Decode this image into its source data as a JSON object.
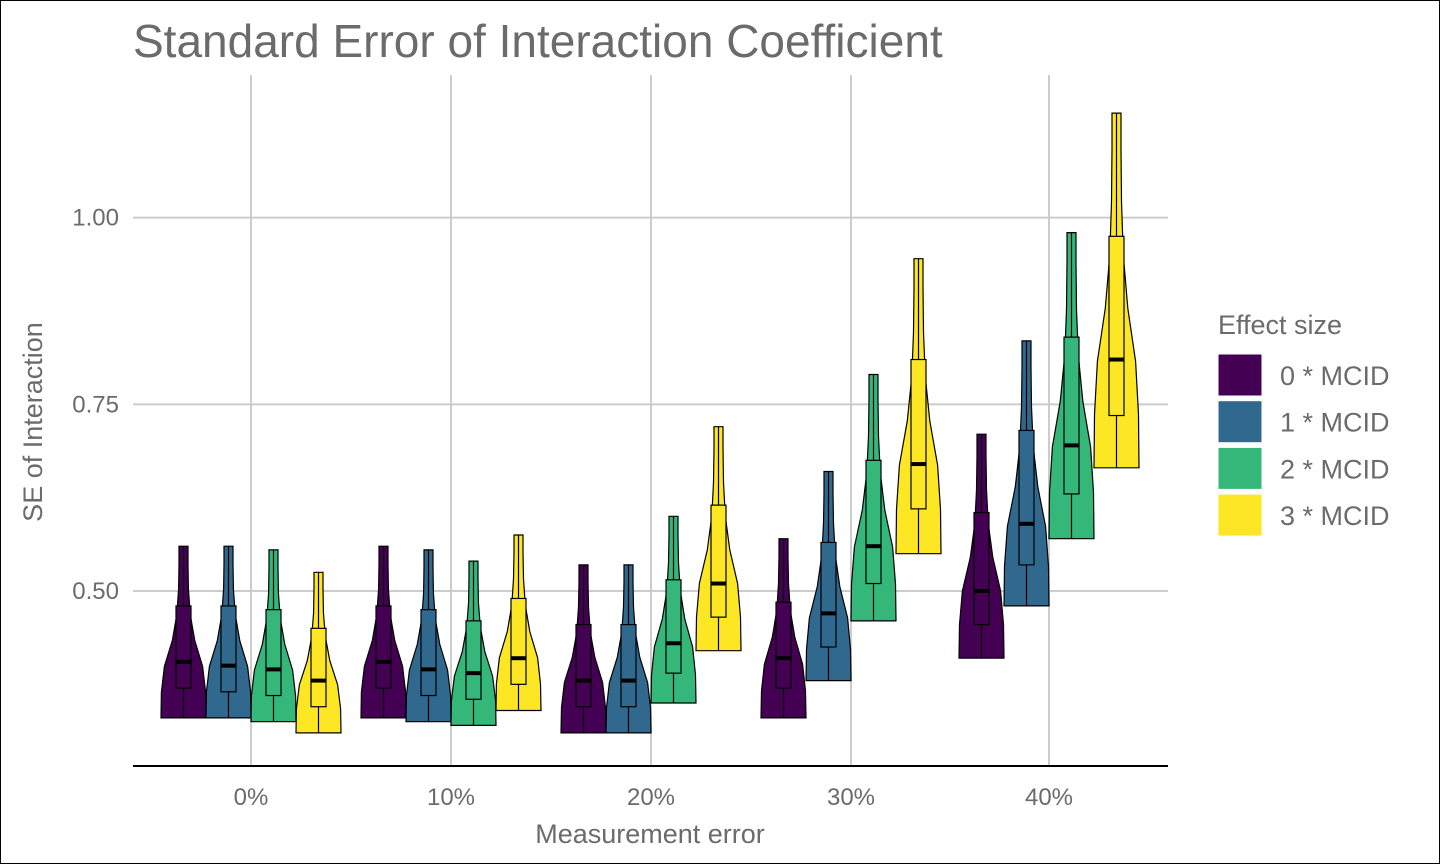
{
  "chart_data": {
    "type": "violin",
    "title": "Standard Error of Interaction Coefficient",
    "xlabel": "Measurement error",
    "ylabel": "SE of Interaction",
    "categories": [
      "0%",
      "10%",
      "20%",
      "30%",
      "40%"
    ],
    "yticks": [
      "0.50",
      "0.75",
      "1.00"
    ],
    "ylim": [
      0.27,
      1.17
    ],
    "grid": true,
    "legend": {
      "title": "Effect size",
      "position": "right"
    },
    "series": [
      {
        "name": "0 * MCID",
        "color": "#440154",
        "violins": [
          {
            "min": 0.33,
            "q1": 0.37,
            "median": 0.405,
            "q3": 0.48,
            "max": 0.56
          },
          {
            "min": 0.33,
            "q1": 0.37,
            "median": 0.405,
            "q3": 0.48,
            "max": 0.56
          },
          {
            "min": 0.31,
            "q1": 0.345,
            "median": 0.38,
            "q3": 0.455,
            "max": 0.535
          },
          {
            "min": 0.33,
            "q1": 0.37,
            "median": 0.41,
            "q3": 0.485,
            "max": 0.57
          },
          {
            "min": 0.41,
            "q1": 0.455,
            "median": 0.5,
            "q3": 0.605,
            "max": 0.71
          }
        ]
      },
      {
        "name": "1 * MCID",
        "color": "#31688E",
        "violins": [
          {
            "min": 0.33,
            "q1": 0.365,
            "median": 0.4,
            "q3": 0.48,
            "max": 0.56
          },
          {
            "min": 0.325,
            "q1": 0.36,
            "median": 0.395,
            "q3": 0.475,
            "max": 0.555
          },
          {
            "min": 0.31,
            "q1": 0.345,
            "median": 0.38,
            "q3": 0.455,
            "max": 0.535
          },
          {
            "min": 0.38,
            "q1": 0.425,
            "median": 0.47,
            "q3": 0.565,
            "max": 0.66
          },
          {
            "min": 0.48,
            "q1": 0.535,
            "median": 0.59,
            "q3": 0.715,
            "max": 0.835
          }
        ]
      },
      {
        "name": "2 * MCID",
        "color": "#35B779",
        "violins": [
          {
            "min": 0.325,
            "q1": 0.36,
            "median": 0.395,
            "q3": 0.475,
            "max": 0.555
          },
          {
            "min": 0.32,
            "q1": 0.355,
            "median": 0.39,
            "q3": 0.46,
            "max": 0.54
          },
          {
            "min": 0.35,
            "q1": 0.39,
            "median": 0.43,
            "q3": 0.515,
            "max": 0.6
          },
          {
            "min": 0.46,
            "q1": 0.51,
            "median": 0.56,
            "q3": 0.675,
            "max": 0.79
          },
          {
            "min": 0.57,
            "q1": 0.63,
            "median": 0.695,
            "q3": 0.84,
            "max": 0.98
          }
        ]
      },
      {
        "name": "3 * MCID",
        "color": "#FDE725",
        "violins": [
          {
            "min": 0.31,
            "q1": 0.345,
            "median": 0.38,
            "q3": 0.45,
            "max": 0.525
          },
          {
            "min": 0.34,
            "q1": 0.375,
            "median": 0.41,
            "q3": 0.49,
            "max": 0.575
          },
          {
            "min": 0.42,
            "q1": 0.465,
            "median": 0.51,
            "q3": 0.615,
            "max": 0.72
          },
          {
            "min": 0.55,
            "q1": 0.61,
            "median": 0.67,
            "q3": 0.81,
            "max": 0.945
          },
          {
            "min": 0.665,
            "q1": 0.735,
            "median": 0.81,
            "q3": 0.975,
            "max": 1.14
          }
        ]
      }
    ]
  }
}
